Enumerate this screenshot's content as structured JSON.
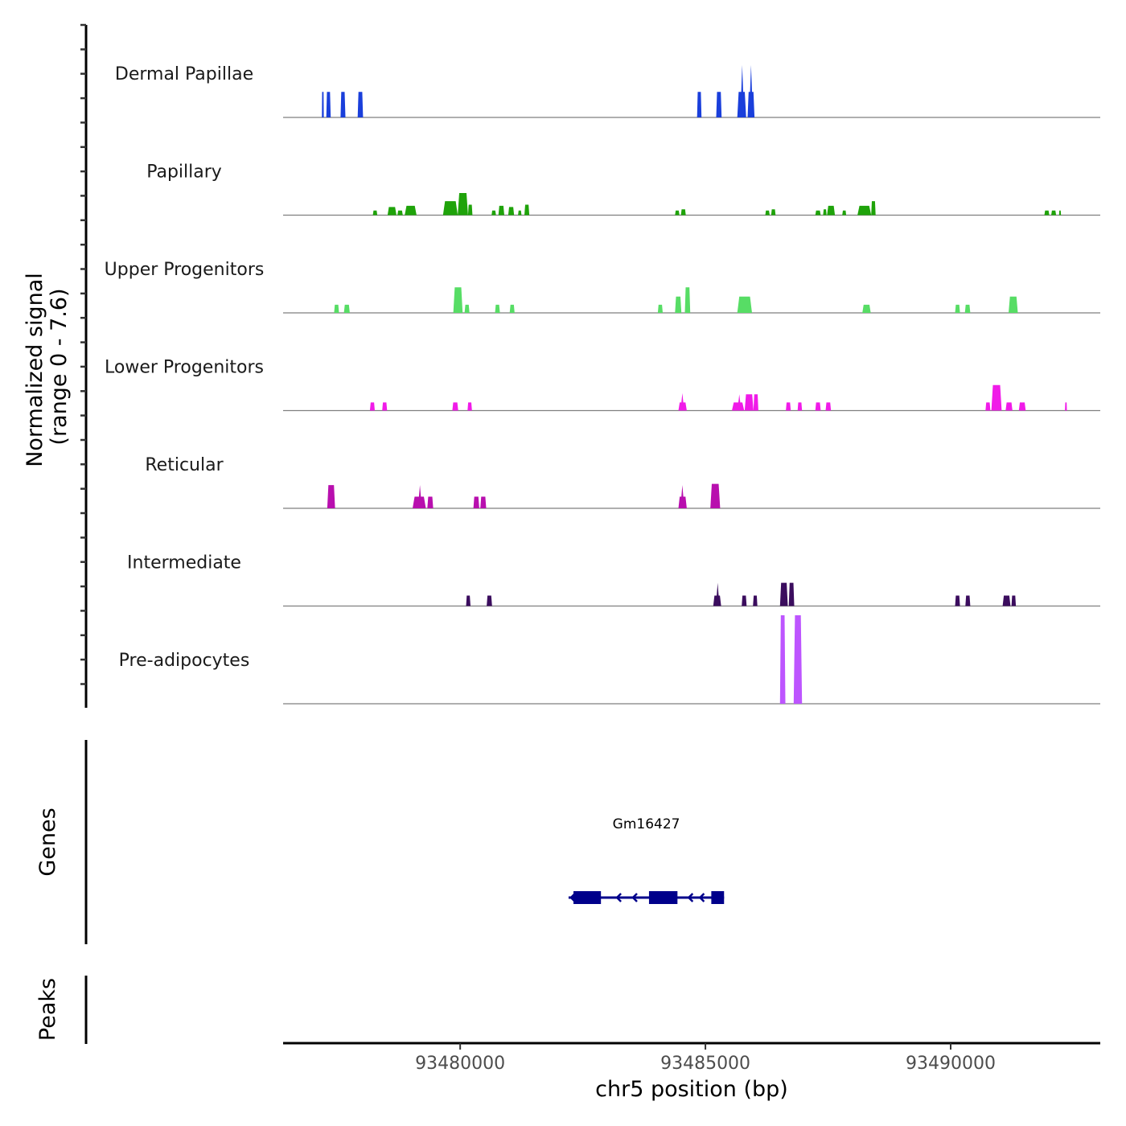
{
  "chart_data": {
    "type": "area",
    "title": "",
    "xlabel": "chr5 position (bp)",
    "ylabel_line1": "Normalized signal",
    "ylabel_line2": "(range 0 - 7.6)",
    "ylim": [
      0,
      7.6
    ],
    "xlim": [
      93476390,
      93493050
    ],
    "x_ticks": [
      93480000,
      93485000,
      93490000
    ],
    "x_tick_labels": [
      "93480000",
      "93485000",
      "93490000"
    ],
    "genes_panel_label": "Genes",
    "peaks_panel_label": "Peaks",
    "tracks": [
      {
        "name": "Dermal Papillae",
        "color": "#1a3fdb",
        "peaks": [
          [
            93477180,
            93477220,
            2.2
          ],
          [
            93477270,
            93477360,
            2.2
          ],
          [
            93477560,
            93477660,
            2.2
          ],
          [
            93477910,
            93478020,
            2.2
          ],
          [
            93484830,
            93484920,
            2.2
          ],
          [
            93485220,
            93485330,
            2.2
          ],
          [
            93485650,
            93485830,
            2.2,
            93485750,
            4.5
          ],
          [
            93485860,
            93486000,
            2.2,
            93485930,
            4.5
          ]
        ]
      },
      {
        "name": "Papillary",
        "color": "#1fa30a",
        "peaks": [
          [
            93478220,
            93478310,
            0.4
          ],
          [
            93478520,
            93478700,
            0.7
          ],
          [
            93478720,
            93478830,
            0.4
          ],
          [
            93478870,
            93479110,
            0.8
          ],
          [
            93479650,
            93479950,
            1.2
          ],
          [
            93479950,
            93480160,
            1.9
          ],
          [
            93480160,
            93480250,
            0.9
          ],
          [
            93480640,
            93480730,
            0.4
          ],
          [
            93480780,
            93480900,
            0.8
          ],
          [
            93480980,
            93481100,
            0.7
          ],
          [
            93481180,
            93481250,
            0.4
          ],
          [
            93481310,
            93481410,
            0.9
          ],
          [
            93484380,
            93484470,
            0.4
          ],
          [
            93484500,
            93484600,
            0.5
          ],
          [
            93486220,
            93486310,
            0.4
          ],
          [
            93486340,
            93486430,
            0.5
          ],
          [
            93487240,
            93487350,
            0.4
          ],
          [
            93487400,
            93487470,
            0.5
          ],
          [
            93487480,
            93487640,
            0.8
          ],
          [
            93487790,
            93487870,
            0.4
          ],
          [
            93488100,
            93488380,
            0.8
          ],
          [
            93488380,
            93488470,
            1.2
          ],
          [
            93491910,
            93492010,
            0.4
          ],
          [
            93492050,
            93492150,
            0.4
          ],
          [
            93492210,
            93492250,
            0.4
          ]
        ]
      },
      {
        "name": "Upper Progenitors",
        "color": "#57dd65",
        "peaks": [
          [
            93477430,
            93477530,
            0.7
          ],
          [
            93477630,
            93477750,
            0.7
          ],
          [
            93479860,
            93480050,
            2.2
          ],
          [
            93480090,
            93480190,
            0.7
          ],
          [
            93480710,
            93480810,
            0.7
          ],
          [
            93481010,
            93481110,
            0.7
          ],
          [
            93484030,
            93484130,
            0.7
          ],
          [
            93484380,
            93484510,
            1.4
          ],
          [
            93484580,
            93484690,
            2.2
          ],
          [
            93485650,
            93485950,
            1.4
          ],
          [
            93488200,
            93488370,
            0.7
          ],
          [
            93490090,
            93490190,
            0.7
          ],
          [
            93490290,
            93490400,
            0.7
          ],
          [
            93491180,
            93491370,
            1.4
          ]
        ]
      },
      {
        "name": "Lower Progenitors",
        "color": "#f01be8",
        "peaks": [
          [
            93478160,
            93478260,
            0.7
          ],
          [
            93478410,
            93478510,
            0.7
          ],
          [
            93479840,
            93479960,
            0.7
          ],
          [
            93480150,
            93480240,
            0.7
          ],
          [
            93484450,
            93484620,
            0.7,
            93484530,
            1.5
          ],
          [
            93485540,
            93485790,
            0.7,
            93485690,
            1.4
          ],
          [
            93485800,
            93485980,
            1.4
          ],
          [
            93485980,
            93486080,
            1.4
          ],
          [
            93486640,
            93486740,
            0.7
          ],
          [
            93486880,
            93486970,
            0.7
          ],
          [
            93487240,
            93487350,
            0.7
          ],
          [
            93487450,
            93487560,
            0.7
          ],
          [
            93490710,
            93490810,
            0.7
          ],
          [
            93490830,
            93491040,
            2.2
          ],
          [
            93491120,
            93491260,
            0.7
          ],
          [
            93491390,
            93491530,
            0.7
          ],
          [
            93492330,
            93492370,
            0.7
          ]
        ]
      },
      {
        "name": "Reticular",
        "color": "#b80fae",
        "peaks": [
          [
            93477290,
            93477450,
            2.0
          ],
          [
            93479030,
            93479300,
            1.0,
            93479180,
            2.0
          ],
          [
            93479330,
            93479450,
            1.0
          ],
          [
            93480270,
            93480390,
            1.0
          ],
          [
            93480410,
            93480530,
            1.0
          ],
          [
            93484450,
            93484620,
            1.0,
            93484530,
            2.0
          ],
          [
            93485100,
            93485300,
            2.1
          ]
        ]
      },
      {
        "name": "Intermediate",
        "color": "#3b0d5e",
        "peaks": [
          [
            93480120,
            93480210,
            0.9
          ],
          [
            93480540,
            93480650,
            0.9
          ],
          [
            93485160,
            93485320,
            0.9,
            93485250,
            2.0
          ],
          [
            93485740,
            93485840,
            0.9
          ],
          [
            93485970,
            93486060,
            0.9
          ],
          [
            93486520,
            93486680,
            2.0
          ],
          [
            93486700,
            93486810,
            2.0
          ],
          [
            93490090,
            93490190,
            0.9
          ],
          [
            93490300,
            93490400,
            0.9
          ],
          [
            93491060,
            93491220,
            0.9
          ],
          [
            93491240,
            93491330,
            0.9
          ]
        ]
      },
      {
        "name": "Pre-adipocytes",
        "color": "#bd55ff",
        "peaks": [
          [
            93486520,
            93486630,
            7.6
          ],
          [
            93486800,
            93486970,
            7.6
          ]
        ]
      }
    ],
    "genes": [
      {
        "name": "Gm16427",
        "strand": "-",
        "color": "#00008b",
        "start": 93482210,
        "end": 93485380,
        "exons": [
          [
            93482310,
            93482870
          ],
          [
            93483850,
            93484430
          ],
          [
            93485120,
            93485380
          ]
        ]
      }
    ],
    "peaks_track": []
  }
}
